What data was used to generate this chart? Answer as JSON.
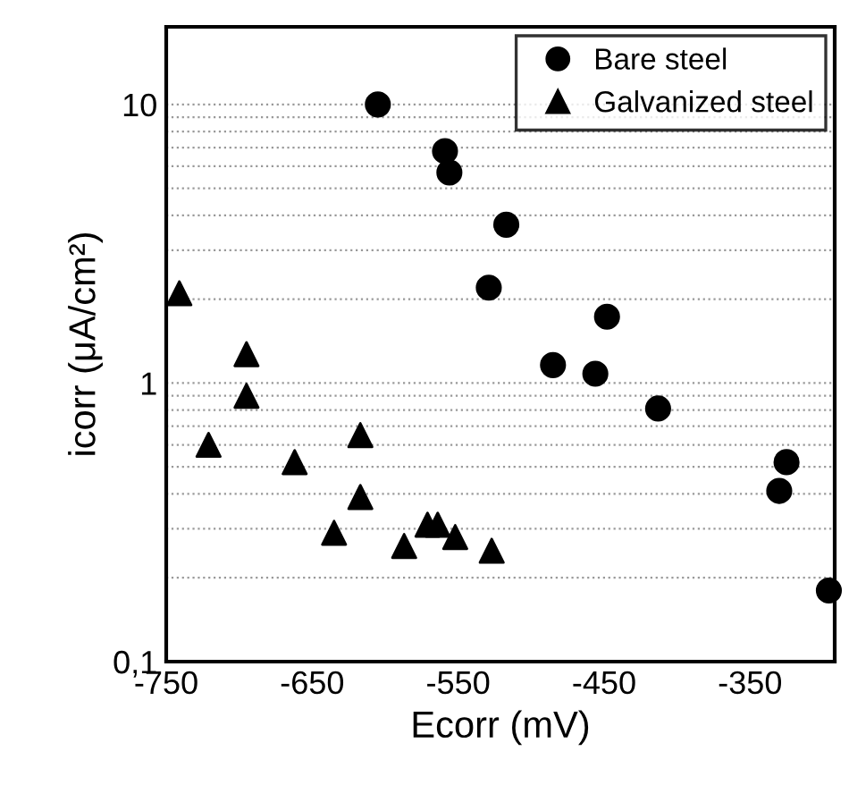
{
  "chart_data": {
    "type": "scatter",
    "xlabel": "Ecorr (mV)",
    "ylabel": "icorr (μA/cm²)",
    "log": "y",
    "xlim": [
      -750,
      -292
    ],
    "ylim": [
      0.1,
      19
    ],
    "xticks": [
      -750,
      -650,
      -550,
      -450,
      -350
    ],
    "yticks": [
      {
        "value": 0.1,
        "label": "0,1"
      },
      {
        "value": 0.2,
        "label": null
      },
      {
        "value": 0.3,
        "label": null
      },
      {
        "value": 0.4,
        "label": null
      },
      {
        "value": 0.5,
        "label": null
      },
      {
        "value": 0.6,
        "label": null
      },
      {
        "value": 0.7,
        "label": null
      },
      {
        "value": 0.8,
        "label": null
      },
      {
        "value": 0.9,
        "label": null
      },
      1,
      {
        "value": 2,
        "label": null
      },
      {
        "value": 3,
        "label": null
      },
      {
        "value": 4,
        "label": null
      },
      {
        "value": 5,
        "label": null
      },
      {
        "value": 6,
        "label": null
      },
      {
        "value": 7,
        "label": null
      },
      {
        "value": 8,
        "label": null
      },
      {
        "value": 9,
        "label": null
      },
      10
    ],
    "grid": "y",
    "legend": "top right",
    "series": [
      {
        "name": "Bare steel",
        "color": "#000000",
        "marker": "circle",
        "x": [
          -605,
          -559,
          -556,
          -517,
          -529,
          -448,
          -485,
          -456,
          -413,
          -325,
          -330,
          -296
        ],
        "values": [
          10,
          6.8,
          5.7,
          3.7,
          2.2,
          1.73,
          1.16,
          1.08,
          0.81,
          0.52,
          0.41,
          0.18
        ]
      },
      {
        "name": "Galvanized steel",
        "color": "#000000",
        "marker": "triangle",
        "x": [
          -741,
          -695,
          -695,
          -721,
          -617,
          -662,
          -617,
          -635,
          -571,
          -564,
          -552,
          -587,
          -527
        ],
        "values": [
          2.1,
          1.27,
          0.9,
          0.6,
          0.65,
          0.52,
          0.39,
          0.29,
          0.31,
          0.31,
          0.28,
          0.26,
          0.25
        ]
      }
    ]
  }
}
